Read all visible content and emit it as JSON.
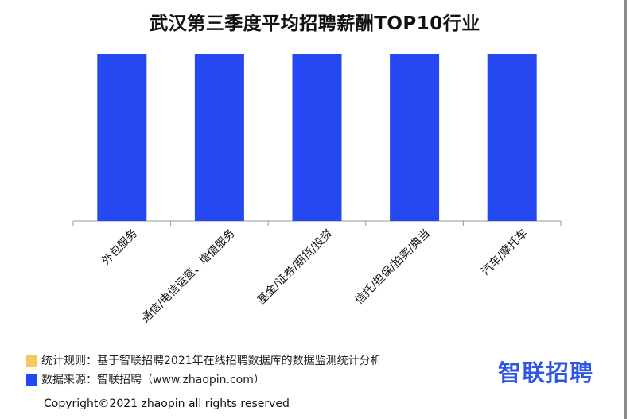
{
  "chart_data": {
    "type": "bar",
    "title": "武汉第三季度平均招聘薪酬TOP10行业",
    "categories": [
      "外包服务",
      "通信/电信运营、增值服务",
      "基金/证券/期货/投资",
      "信托/担保/拍卖/典当",
      "汽车/摩托车"
    ],
    "values": [
      1,
      1,
      1,
      1,
      1
    ],
    "bar_color": "#2548f2",
    "axis_color": "#999999",
    "grid": false
  },
  "legend": [
    {
      "text": "统计规则：基于智联招聘2021年在线招聘数据库的数据监测统计分析",
      "color": "#f5c861"
    },
    {
      "text": "数据来源：智联招聘（www.zhaopin.com）",
      "color": "#2548f2"
    }
  ],
  "brand": {
    "logo_text": "智联招聘",
    "color": "#2f57e4"
  },
  "footer": {
    "copyright": "Copyright©2021 zhaopin all rights reserved"
  }
}
